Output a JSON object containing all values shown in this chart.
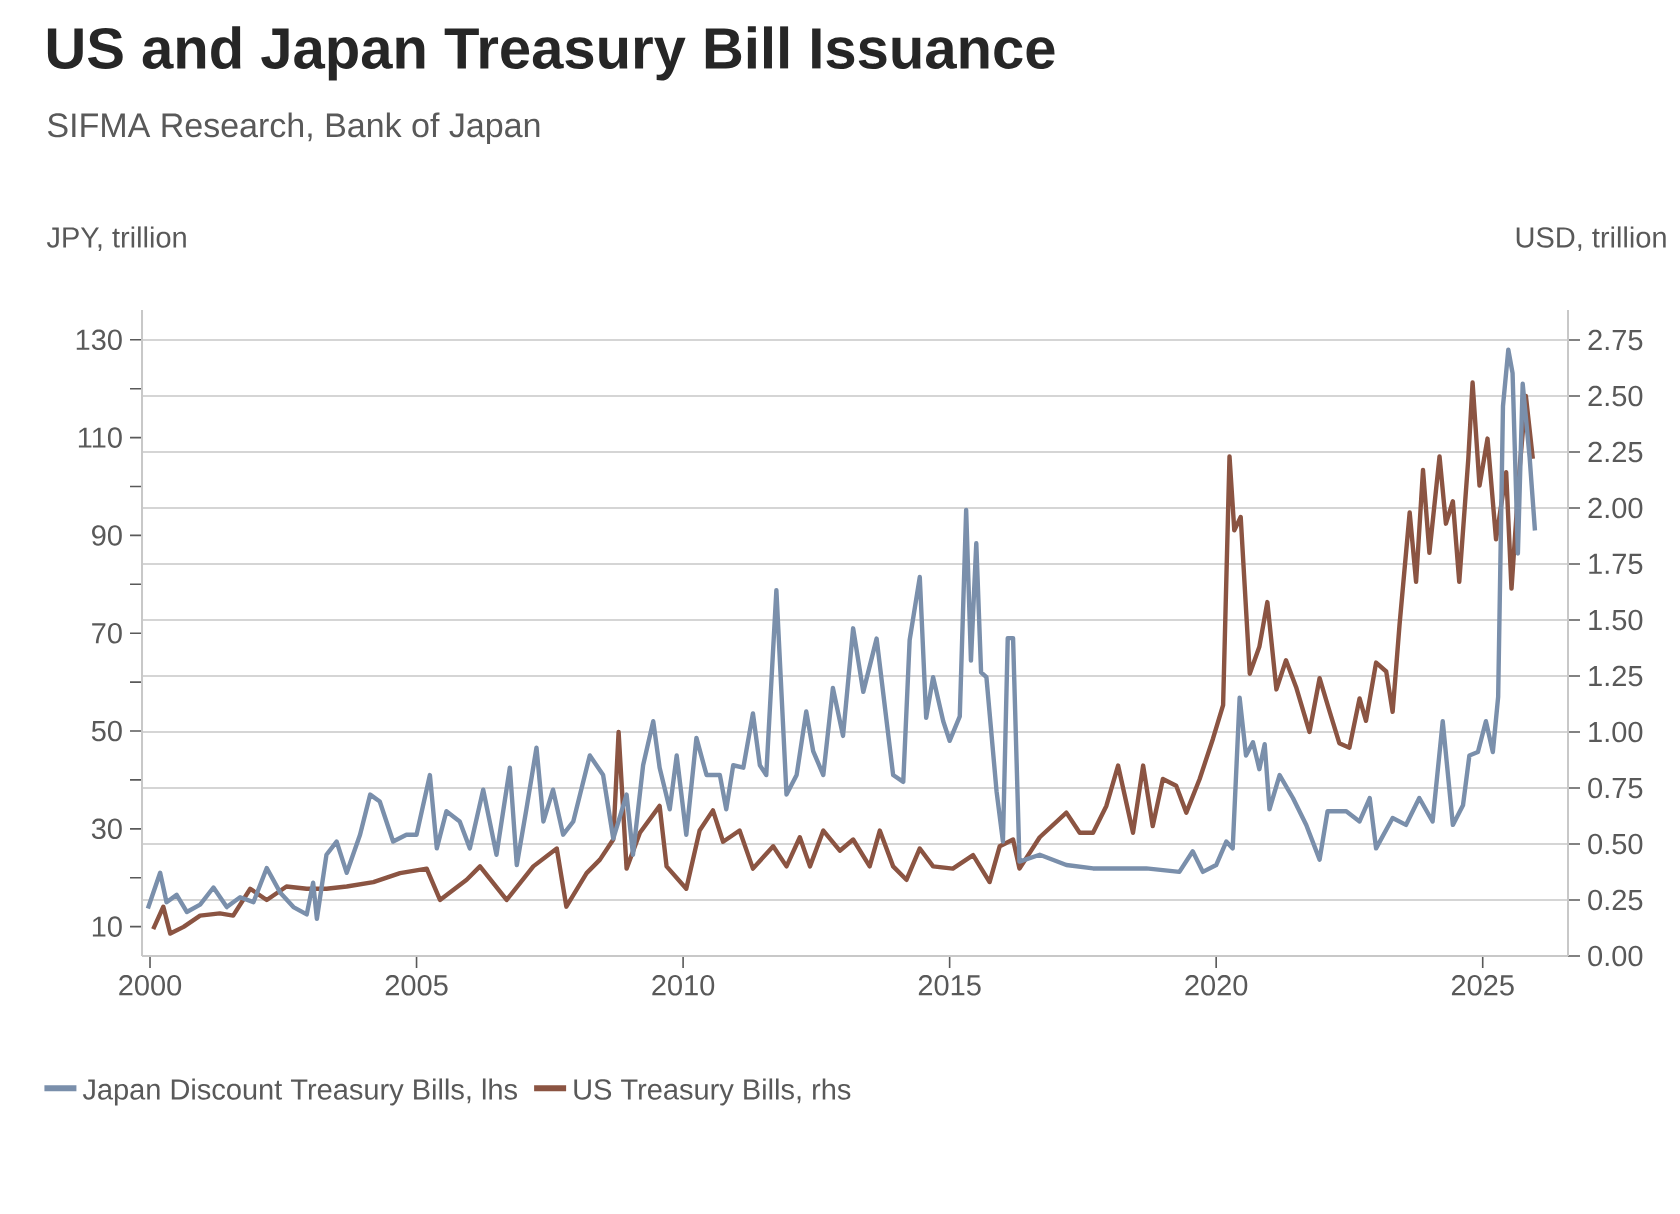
{
  "chart_data": {
    "type": "line",
    "title": "US and Japan Treasury Bill Issuance",
    "subtitle": "SIFMA Research, Bank of Japan",
    "ylabel": "JPY, trillion",
    "y2label": "USD, trillion",
    "xlim": [
      1999.85,
      2026.6
    ],
    "xticks": [
      2000,
      2005,
      2010,
      2015,
      2020,
      2025
    ],
    "ylim": [
      4,
      136.1
    ],
    "yticks": [
      10,
      {
        "value": 20,
        "label": null
      },
      30,
      {
        "value": 40,
        "label": null
      },
      50,
      {
        "value": 60,
        "label": null
      },
      70,
      {
        "value": 80,
        "label": null
      },
      90,
      {
        "value": 100,
        "label": null
      },
      110,
      {
        "value": 120,
        "label": null
      },
      130
    ],
    "y2lim": [
      0,
      2.884
    ],
    "y2ticks": [
      {
        "value": 0,
        "label": "0.00"
      },
      {
        "value": 0.25,
        "label": "0.25"
      },
      {
        "value": 0.5,
        "label": "0.50"
      },
      {
        "value": 0.75,
        "label": "0.75"
      },
      {
        "value": 1,
        "label": "1.00"
      },
      {
        "value": 1.25,
        "label": "1.25"
      },
      {
        "value": 1.5,
        "label": "1.50"
      },
      {
        "value": 1.75,
        "label": "1.75"
      },
      {
        "value": 2,
        "label": "2.00"
      },
      {
        "value": 2.25,
        "label": "2.25"
      },
      {
        "value": 2.5,
        "label": "2.50"
      },
      {
        "value": 2.75,
        "label": "2.75"
      }
    ],
    "grid": "y",
    "legend": "bottom",
    "marker": "none",
    "line_style": "solid",
    "series": [
      {
        "name": "Japan Discount Treasury Bills, lhs",
        "color": "#7a8fab",
        "x": [
          1999.96,
          2000.19,
          2000.31,
          2000.5,
          2000.69,
          2000.94,
          2001.19,
          2001.44,
          2001.69,
          2001.94,
          2002.19,
          2002.44,
          2002.69,
          2002.94,
          2003.06,
          2003.13,
          2003.31,
          2003.5,
          2003.69,
          2003.94,
          2004.13,
          2004.31,
          2004.56,
          2004.81,
          2005,
          2005.25,
          2005.38,
          2005.56,
          2005.81,
          2006,
          2006.25,
          2006.5,
          2006.75,
          2006.88,
          2007.06,
          2007.25,
          2007.38,
          2007.56,
          2007.75,
          2007.94,
          2008.25,
          2008.5,
          2008.69,
          2008.94,
          2009.06,
          2009.25,
          2009.44,
          2009.56,
          2009.75,
          2009.88,
          2010.06,
          2010.25,
          2010.44,
          2010.69,
          2010.81,
          2010.94,
          2011.13,
          2011.31,
          2011.44,
          2011.56,
          2011.75,
          2011.94,
          2012.13,
          2012.31,
          2012.44,
          2012.63,
          2012.81,
          2013,
          2013.19,
          2013.38,
          2013.63,
          2013.94,
          2014.13,
          2014.25,
          2014.44,
          2014.56,
          2014.69,
          2014.88,
          2015,
          2015.19,
          2015.31,
          2015.4,
          2015.5,
          2015.59,
          2015.69,
          2015.88,
          2016,
          2016.09,
          2016.19,
          2016.31,
          2016.69,
          2017.19,
          2017.69,
          2017.94,
          2018.19,
          2018.69,
          2019.31,
          2019.56,
          2019.75,
          2020,
          2020.19,
          2020.31,
          2020.44,
          2020.56,
          2020.69,
          2020.81,
          2020.91,
          2021,
          2021.19,
          2021.44,
          2021.69,
          2021.94,
          2022.09,
          2022.44,
          2022.69,
          2022.88,
          2023,
          2023.31,
          2023.56,
          2023.81,
          2024.06,
          2024.25,
          2024.44,
          2024.63,
          2024.75,
          2024.91,
          2025.06,
          2025.19,
          2025.29,
          2025.38,
          2025.48,
          2025.56,
          2025.66,
          2025.75,
          2025.88,
          2025.98
        ],
        "values": [
          13.7,
          21,
          15,
          16.5,
          13,
          14.5,
          18,
          14,
          16,
          15,
          22,
          17,
          14,
          12.5,
          19,
          11.6,
          24.7,
          27.4,
          21,
          28.8,
          37,
          35.6,
          27.4,
          28.8,
          28.8,
          41,
          26,
          33.6,
          31.5,
          26,
          38,
          24.7,
          42.5,
          22.6,
          34,
          46.6,
          31.5,
          38,
          28.8,
          31.5,
          45,
          41,
          28,
          37,
          24.7,
          43,
          52,
          42.5,
          34,
          45,
          28.8,
          48.6,
          41,
          41,
          34,
          43,
          42.5,
          53.6,
          43,
          41,
          78.8,
          37,
          41,
          54,
          45.9,
          41,
          58.8,
          49,
          71,
          58,
          68.9,
          41,
          39.6,
          68.6,
          81.5,
          52.7,
          61,
          52,
          48,
          53,
          95.2,
          64.4,
          88.4,
          62,
          61,
          37.7,
          27.4,
          69,
          69,
          23.3,
          24.7,
          22.6,
          21.9,
          21.9,
          21.9,
          21.9,
          21.2,
          25.4,
          21.2,
          22.6,
          27.4,
          26,
          56.8,
          45,
          47.7,
          42.2,
          47.3,
          34,
          41,
          36.3,
          30.8,
          23.7,
          33.6,
          33.6,
          31.5,
          36.3,
          26,
          32.2,
          30.8,
          36.3,
          31.5,
          52,
          30.8,
          34.8,
          45,
          45.7,
          52,
          45.7,
          57,
          116.4,
          128,
          123.2,
          86.3,
          121,
          106,
          91
        ]
      },
      {
        "name": "US Treasury Bills, rhs",
        "color": "#8b5442",
        "axis": "y2",
        "x": [
          2000.06,
          2000.25,
          2000.38,
          2000.63,
          2000.94,
          2001.31,
          2001.56,
          2001.88,
          2002.19,
          2002.56,
          2002.94,
          2003.31,
          2003.69,
          2004.19,
          2004.69,
          2005.19,
          2005.44,
          2005.94,
          2006.19,
          2006.69,
          2007.19,
          2007.63,
          2007.81,
          2008.19,
          2008.44,
          2008.69,
          2008.79,
          2008.94,
          2009.19,
          2009.56,
          2009.69,
          2010.06,
          2010.31,
          2010.56,
          2010.75,
          2011.06,
          2011.31,
          2011.69,
          2011.94,
          2012.19,
          2012.38,
          2012.63,
          2012.94,
          2013.19,
          2013.5,
          2013.69,
          2013.94,
          2014.19,
          2014.44,
          2014.69,
          2015.06,
          2015.44,
          2015.75,
          2015.94,
          2016.19,
          2016.31,
          2016.69,
          2017.19,
          2017.44,
          2017.69,
          2017.94,
          2018.16,
          2018.44,
          2018.63,
          2018.81,
          2019,
          2019.25,
          2019.44,
          2019.69,
          2019.94,
          2020.13,
          2020.25,
          2020.34,
          2020.46,
          2020.63,
          2020.81,
          2020.96,
          2021.13,
          2021.31,
          2021.5,
          2021.75,
          2021.94,
          2022.13,
          2022.31,
          2022.5,
          2022.69,
          2022.81,
          2023,
          2023.19,
          2023.31,
          2023.44,
          2023.63,
          2023.75,
          2023.88,
          2024,
          2024.19,
          2024.31,
          2024.44,
          2024.56,
          2024.73,
          2024.81,
          2024.94,
          2025.09,
          2025.25,
          2025.44,
          2025.54,
          2025.69,
          2025.81,
          2025.94
        ],
        "values": [
          0.12,
          0.22,
          0.1,
          0.13,
          0.18,
          0.19,
          0.18,
          0.3,
          0.25,
          0.31,
          0.3,
          0.3,
          0.31,
          0.33,
          0.37,
          0.39,
          0.25,
          0.34,
          0.4,
          0.25,
          0.4,
          0.48,
          0.22,
          0.37,
          0.43,
          0.52,
          1.0,
          0.39,
          0.55,
          0.67,
          0.4,
          0.3,
          0.56,
          0.65,
          0.51,
          0.56,
          0.39,
          0.49,
          0.4,
          0.53,
          0.4,
          0.56,
          0.47,
          0.52,
          0.4,
          0.56,
          0.4,
          0.34,
          0.48,
          0.4,
          0.39,
          0.45,
          0.33,
          0.49,
          0.52,
          0.39,
          0.53,
          0.64,
          0.55,
          0.55,
          0.67,
          0.85,
          0.55,
          0.85,
          0.58,
          0.79,
          0.76,
          0.64,
          0.79,
          0.97,
          1.12,
          2.23,
          1.9,
          1.96,
          1.26,
          1.38,
          1.58,
          1.19,
          1.32,
          1.2,
          1.0,
          1.24,
          1.09,
          0.95,
          0.93,
          1.15,
          1.05,
          1.31,
          1.27,
          1.09,
          1.48,
          1.98,
          1.67,
          2.17,
          1.8,
          2.23,
          1.93,
          2.03,
          1.67,
          2.22,
          2.56,
          2.1,
          2.31,
          1.86,
          2.16,
          1.64,
          2.17,
          2.5,
          2.22
        ]
      }
    ]
  }
}
